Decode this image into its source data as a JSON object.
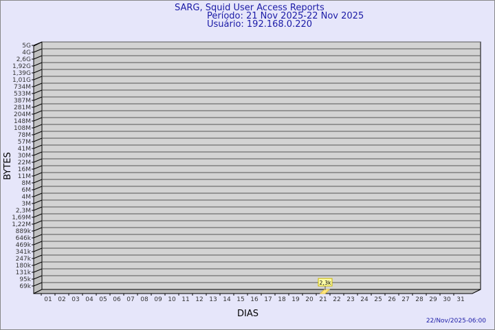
{
  "chart_data": {
    "type": "bar",
    "title": "SARG, Squid User Access Reports",
    "subtitle1": "Período: 21 Nov 2025-22 Nov 2025",
    "subtitle2": "Usuário: 192.168.0.220",
    "xlabel": "DIAS",
    "ylabel": "BYTES",
    "y_scale": "log",
    "y_ticks": [
      "5G",
      "4G",
      "2,6G",
      "1,92G",
      "1,39G",
      "1,01G",
      "734M",
      "533M",
      "387M",
      "281M",
      "204M",
      "148M",
      "108M",
      "78M",
      "57M",
      "41M",
      "30M",
      "22M",
      "16M",
      "11M",
      "8M",
      "6M",
      "4M",
      "3M",
      "2,3M",
      "1,69M",
      "1,22M",
      "889k",
      "646k",
      "469k",
      "341k",
      "247k",
      "180k",
      "131k",
      "95k",
      "69k"
    ],
    "categories": [
      "01",
      "02",
      "03",
      "04",
      "05",
      "06",
      "07",
      "08",
      "09",
      "10",
      "11",
      "12",
      "13",
      "14",
      "15",
      "16",
      "17",
      "18",
      "19",
      "20",
      "21",
      "22",
      "23",
      "24",
      "25",
      "26",
      "27",
      "28",
      "29",
      "30",
      "31"
    ],
    "bars": [
      {
        "day": "21",
        "value": 2300,
        "label": "2,3k"
      }
    ],
    "grid": true,
    "colors": {
      "background": "#e6e6fa",
      "plot": "#d3d3d3",
      "bar": "#ffe680",
      "text": "#1a1aa6"
    }
  },
  "footer": "22/Nov/2025-06:00"
}
